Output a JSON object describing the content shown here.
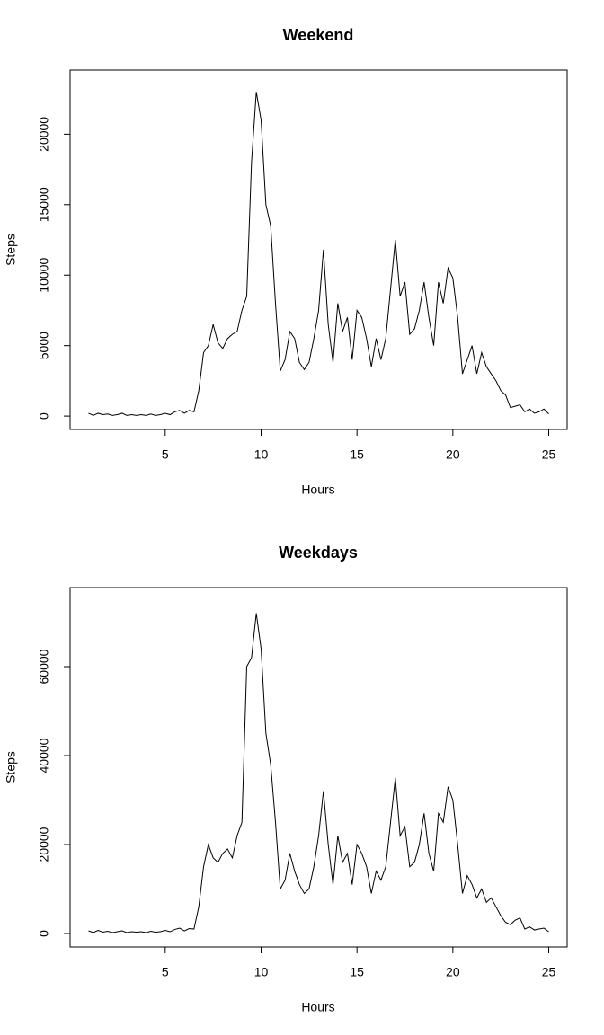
{
  "chart_data": [
    {
      "type": "line",
      "title": "Weekend",
      "x_label": "Hours",
      "y_label": "Steps",
      "x": [
        1,
        1.25,
        1.5,
        1.75,
        2,
        2.25,
        2.5,
        2.75,
        3,
        3.25,
        3.5,
        3.75,
        4,
        4.25,
        4.5,
        4.75,
        5,
        5.25,
        5.5,
        5.75,
        6,
        6.25,
        6.5,
        6.75,
        7,
        7.25,
        7.5,
        7.75,
        8,
        8.25,
        8.5,
        8.75,
        9,
        9.25,
        9.5,
        9.75,
        10,
        10.25,
        10.5,
        10.75,
        11,
        11.25,
        11.5,
        11.75,
        12,
        12.25,
        12.5,
        12.75,
        13,
        13.25,
        13.5,
        13.75,
        14,
        14.25,
        14.5,
        14.75,
        15,
        15.25,
        15.5,
        15.75,
        16,
        16.25,
        16.5,
        16.75,
        17,
        17.25,
        17.5,
        17.75,
        18,
        18.25,
        18.5,
        18.75,
        19,
        19.25,
        19.5,
        19.75,
        20,
        20.25,
        20.5,
        20.75,
        21,
        21.25,
        21.5,
        21.75,
        22,
        22.25,
        22.5,
        22.75,
        23,
        23.25,
        23.5,
        23.75,
        24,
        24.25,
        24.5,
        24.75,
        25
      ],
      "series": [
        {
          "color": "#000000",
          "values": [
            200,
            50,
            200,
            100,
            150,
            50,
            100,
            200,
            50,
            100,
            50,
            100,
            50,
            150,
            50,
            100,
            200,
            100,
            300,
            400,
            200,
            400,
            300,
            1800,
            4500,
            5000,
            6500,
            5200,
            4800,
            5500,
            5800,
            6000,
            7500,
            8500,
            18000,
            23000,
            21000,
            15000,
            13500,
            8000,
            3200,
            4000,
            6000,
            5500,
            3800,
            3300,
            3800,
            5500,
            7500,
            11800,
            6500,
            3800,
            8000,
            6000,
            7000,
            4000,
            7500,
            7000,
            5500,
            3500,
            5500,
            4000,
            5500,
            9000,
            12500,
            8500,
            9500,
            5800,
            6200,
            7500,
            9500,
            7000,
            5000,
            9500,
            8000,
            10500,
            9800,
            7000,
            3000,
            4000,
            5000,
            3000,
            4500,
            3500,
            3000,
            2500,
            1800,
            1500,
            600,
            700,
            800,
            300,
            500,
            200,
            300,
            500,
            150
          ]
        }
      ],
      "xlim": [
        0.04,
        25.96
      ],
      "xticks": [
        5,
        10,
        15,
        20,
        25
      ],
      "ylim": [
        -950,
        24550
      ],
      "yticks": [
        0,
        5000,
        10000,
        15000,
        20000
      ]
    },
    {
      "type": "line",
      "title": "Weekdays",
      "x_label": "Hours",
      "y_label": "Steps",
      "x": [
        1,
        1.25,
        1.5,
        1.75,
        2,
        2.25,
        2.5,
        2.75,
        3,
        3.25,
        3.5,
        3.75,
        4,
        4.25,
        4.5,
        4.75,
        5,
        5.25,
        5.5,
        5.75,
        6,
        6.25,
        6.5,
        6.75,
        7,
        7.25,
        7.5,
        7.75,
        8,
        8.25,
        8.5,
        8.75,
        9,
        9.25,
        9.5,
        9.75,
        10,
        10.25,
        10.5,
        10.75,
        11,
        11.25,
        11.5,
        11.75,
        12,
        12.25,
        12.5,
        12.75,
        13,
        13.25,
        13.5,
        13.75,
        14,
        14.25,
        14.5,
        14.75,
        15,
        15.25,
        15.5,
        15.75,
        16,
        16.25,
        16.5,
        16.75,
        17,
        17.25,
        17.5,
        17.75,
        18,
        18.25,
        18.5,
        18.75,
        19,
        19.25,
        19.5,
        19.75,
        20,
        20.25,
        20.5,
        20.75,
        21,
        21.25,
        21.5,
        21.75,
        22,
        22.25,
        22.5,
        22.75,
        23,
        23.25,
        23.5,
        23.75,
        24,
        24.25,
        24.5,
        24.75,
        25
      ],
      "series": [
        {
          "color": "#000000",
          "values": [
            600,
            200,
            700,
            300,
            500,
            200,
            400,
            600,
            200,
            400,
            300,
            400,
            200,
            500,
            300,
            400,
            700,
            400,
            900,
            1200,
            600,
            1100,
            1000,
            6000,
            15000,
            20000,
            17000,
            16000,
            18000,
            19000,
            17000,
            22000,
            25000,
            60000,
            62000,
            72000,
            64000,
            45000,
            38000,
            25000,
            10000,
            12000,
            18000,
            14000,
            11000,
            9000,
            10000,
            15000,
            22000,
            32000,
            20000,
            11000,
            22000,
            16000,
            18000,
            11000,
            20000,
            18000,
            15000,
            9000,
            14000,
            12000,
            15000,
            25000,
            35000,
            22000,
            24000,
            15000,
            16000,
            20000,
            27000,
            18000,
            14000,
            27000,
            25000,
            33000,
            30000,
            20000,
            9000,
            13000,
            11000,
            8000,
            10000,
            7000,
            8000,
            6000,
            4000,
            2500,
            2000,
            3000,
            3500,
            1000,
            1500,
            800,
            1000,
            1200,
            400
          ]
        }
      ],
      "xlim": [
        0.04,
        25.96
      ],
      "xticks": [
        5,
        10,
        15,
        20,
        25
      ],
      "ylim": [
        -3030,
        77780
      ],
      "yticks": [
        0,
        20000,
        40000,
        60000
      ]
    }
  ]
}
